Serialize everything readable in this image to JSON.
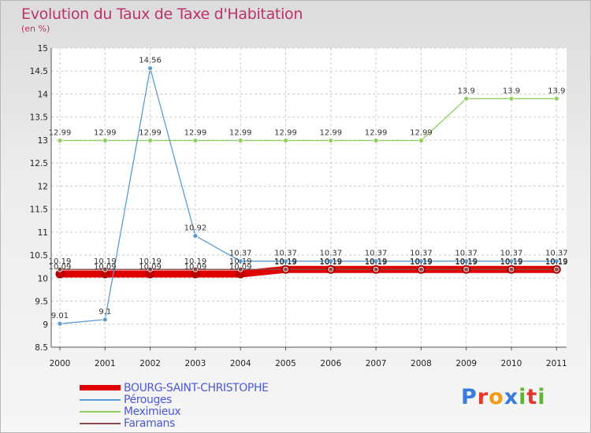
{
  "title": "Evolution du Taux de Taxe d'Habitation",
  "subtitle": "(en %)",
  "logo": {
    "letters": [
      "P",
      "r",
      "o",
      "x",
      "i",
      "t",
      "i"
    ],
    "colors": [
      "#3a7be0",
      "#e8352e",
      "#f29b14",
      "#3a7be0",
      "#5fb634",
      "#e8352e",
      "#5fb634"
    ]
  },
  "chart_data": {
    "type": "line",
    "title": "Evolution du Taux de Taxe d'Habitation",
    "ylabel": "(en %)",
    "x": [
      "2000",
      "2001",
      "2002",
      "2003",
      "2004",
      "2005",
      "2006",
      "2007",
      "2008",
      "2009",
      "2010",
      "2011"
    ],
    "ylim": [
      8.5,
      15
    ],
    "yticks": [
      "8.5",
      "9",
      "9.5",
      "10",
      "10.5",
      "11",
      "11.5",
      "12",
      "12.5",
      "13",
      "13.5",
      "14",
      "14.5",
      "15"
    ],
    "grid": true,
    "legend_position": "bottom-left",
    "series": [
      {
        "name": "BOURG-SAINT-CHRISTOPHE",
        "color": "#e00000",
        "values": [
          10.09,
          10.09,
          10.09,
          10.09,
          10.09,
          10.19,
          10.19,
          10.19,
          10.19,
          10.19,
          10.19,
          10.19
        ],
        "labels": [
          "10.09",
          "10.09",
          "10.09",
          "10.09",
          "10.09",
          "10.19",
          "10.19",
          "10.19",
          "10.19",
          "10.19",
          "10.19",
          "10.19"
        ]
      },
      {
        "name": "Pérouges",
        "color": "#5b9bd5",
        "values": [
          9.01,
          9.1,
          14.56,
          10.92,
          10.37,
          10.37,
          10.37,
          10.37,
          10.37,
          10.37,
          10.37,
          10.37
        ],
        "labels": [
          "9.01",
          "9.1",
          "14.56",
          "10.92",
          "10.37",
          "10.37",
          "10.37",
          "10.37",
          "10.37",
          "10.37",
          "10.37",
          "10.37"
        ]
      },
      {
        "name": "Meximieux",
        "color": "#90d060",
        "values": [
          12.99,
          12.99,
          12.99,
          12.99,
          12.99,
          12.99,
          12.99,
          12.99,
          12.99,
          13.9,
          13.9,
          13.9
        ],
        "labels": [
          "12.99",
          "12.99",
          "12.99",
          "12.99",
          "12.99",
          "12.99",
          "12.99",
          "12.99",
          "12.99",
          "13.9",
          "13.9",
          "13.9"
        ]
      },
      {
        "name": "Faramans",
        "color": "#8b4a4a",
        "values": [
          10.19,
          10.19,
          10.19,
          10.19,
          10.19,
          10.19,
          10.19,
          10.19,
          10.19,
          10.19,
          10.19,
          10.19
        ],
        "labels": [
          "10.19",
          "10.19",
          "10.19",
          "10.19",
          "10.19",
          "10.19",
          "10.19",
          "10.19",
          "10.19",
          "10.19",
          "10.19",
          "10.19"
        ]
      }
    ]
  }
}
